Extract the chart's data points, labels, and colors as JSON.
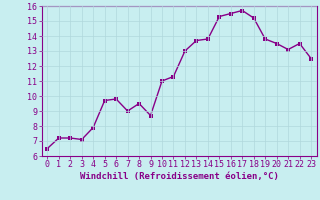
{
  "x": [
    0,
    1,
    2,
    3,
    4,
    5,
    6,
    7,
    8,
    9,
    10,
    11,
    12,
    13,
    14,
    15,
    16,
    17,
    18,
    19,
    20,
    21,
    22,
    23
  ],
  "y": [
    6.5,
    7.2,
    7.2,
    7.1,
    7.9,
    9.7,
    9.8,
    9.0,
    9.5,
    8.7,
    11.0,
    11.3,
    13.0,
    13.7,
    13.8,
    15.3,
    15.5,
    15.7,
    15.2,
    13.8,
    13.5,
    13.1,
    13.5,
    12.5
  ],
  "xlabel": "Windchill (Refroidissement éolien,°C)",
  "ylim": [
    6,
    16
  ],
  "xlim_min": -0.5,
  "xlim_max": 23.5,
  "yticks": [
    6,
    7,
    8,
    9,
    10,
    11,
    12,
    13,
    14,
    15,
    16
  ],
  "xticks": [
    0,
    1,
    2,
    3,
    4,
    5,
    6,
    7,
    8,
    9,
    10,
    11,
    12,
    13,
    14,
    15,
    16,
    17,
    18,
    19,
    20,
    21,
    22,
    23
  ],
  "line_color": "#880088",
  "bg_color": "#c8eef0",
  "grid_color": "#b0d8dc",
  "xlabel_fontsize": 6.5,
  "tick_fontsize": 6,
  "line_width": 1.0,
  "marker_size": 2.5
}
